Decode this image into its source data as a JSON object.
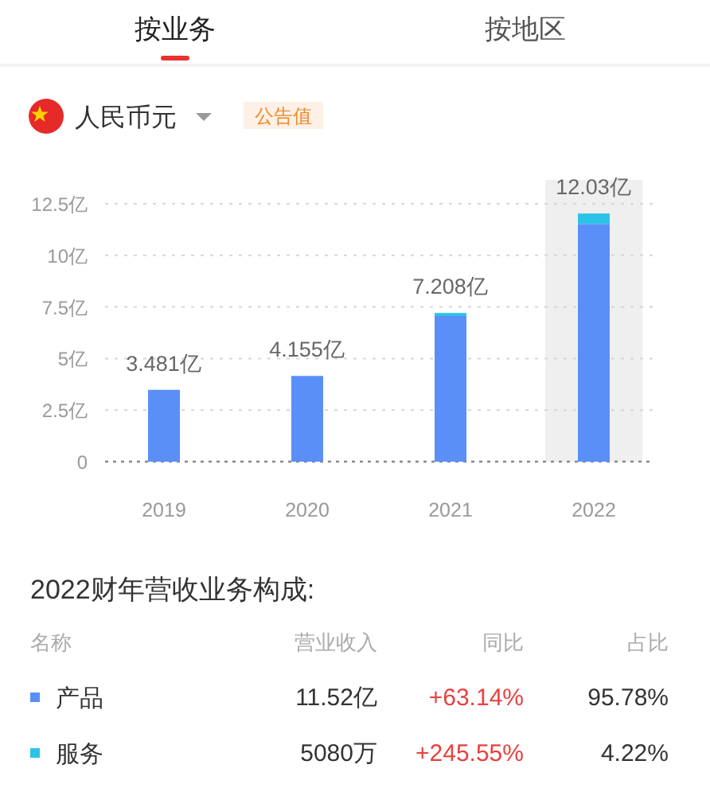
{
  "chart_data": {
    "type": "bar",
    "stacked": true,
    "categories": [
      "2019",
      "2020",
      "2021",
      "2022"
    ],
    "series": [
      {
        "name": "产品",
        "color": "#5a8ff8",
        "values": [
          3.481,
          4.155,
          7.06,
          11.52
        ]
      },
      {
        "name": "服务",
        "color": "#2cc2e8",
        "values": [
          null,
          null,
          0.148,
          0.508
        ]
      }
    ],
    "totals": [
      "3.481亿",
      "4.155亿",
      "7.208亿",
      "12.03亿"
    ],
    "ylim": [
      0,
      12.5
    ],
    "yticks": [
      0,
      {
        "value": 2.5,
        "label": "2.5亿"
      },
      {
        "value": 5,
        "label": "5亿"
      },
      {
        "value": 7.5,
        "label": "7.5亿"
      },
      {
        "value": 10,
        "label": "10亿"
      },
      {
        "value": 12.5,
        "label": "12.5亿"
      }
    ],
    "grid": "y",
    "legend": "bottom",
    "bands": [
      {
        "axis": "x",
        "from": "2022",
        "to": "2022",
        "color": "#efefef"
      }
    ],
    "annotations": [
      "按业务",
      "按地区",
      "人民币元",
      "公告值",
      "2022财年营收业务构成:",
      "名称",
      "营业收入",
      "同比",
      "占比",
      "11.52亿",
      "+63.14%",
      "95.78%",
      "5080万",
      "+245.55%",
      "4.22%"
    ]
  }
}
